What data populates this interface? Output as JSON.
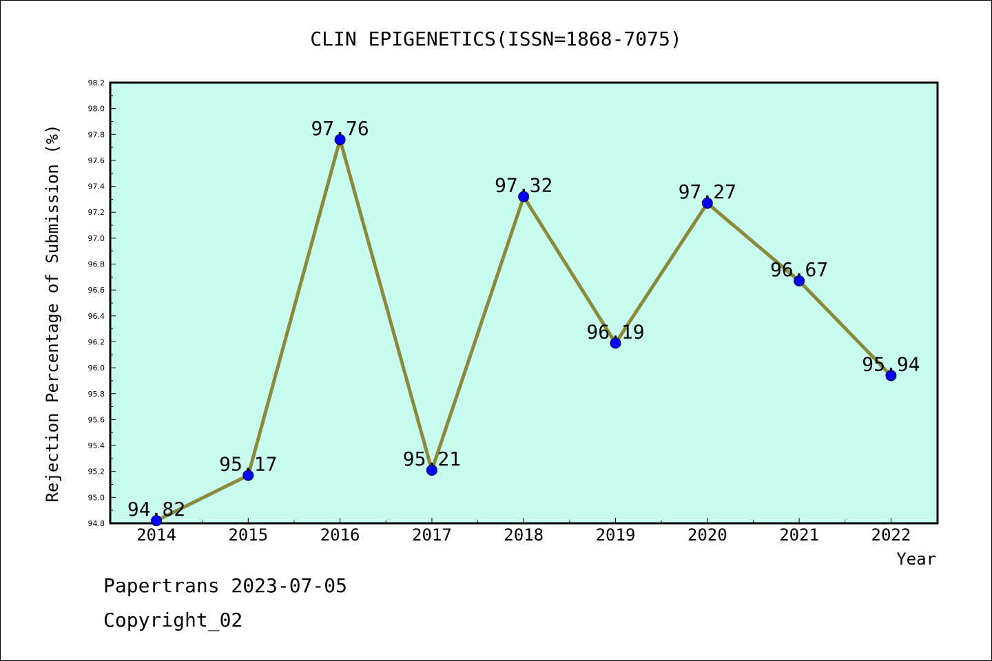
{
  "chart_data": {
    "type": "line",
    "title": "CLIN EPIGENETICS(ISSN=1868-7075)",
    "xlabel": "Year",
    "ylabel": "Rejection Percentage of Submission (%)",
    "categories": [
      "2014",
      "2015",
      "2016",
      "2017",
      "2018",
      "2019",
      "2020",
      "2021",
      "2022"
    ],
    "series": [
      {
        "values": [
          94.82,
          95.17,
          97.76,
          95.21,
          97.32,
          96.19,
          97.27,
          96.67,
          95.94
        ],
        "labels": [
          "94.82",
          "95.17",
          "97.76",
          "95.21",
          "97.32",
          "96.19",
          "97.27",
          "96.67",
          "95.94"
        ]
      }
    ],
    "ylim": [
      94.8,
      98.2
    ],
    "yticks": [
      "94.8",
      "95.0",
      "95.2",
      "95.4",
      "95.6",
      "95.8",
      "96.0",
      "96.2",
      "96.4",
      "96.6",
      "96.8",
      "97.0",
      "97.2",
      "97.4",
      "97.6",
      "97.8",
      "98.0",
      "98.2"
    ],
    "grid": false,
    "legend": "none",
    "colors": {
      "plot_background": "#c8fcee",
      "line": "#8b8a3a",
      "marker": "#0000ff"
    }
  },
  "footer": {
    "line1": "Papertrans 2023-07-05",
    "line2": "Copyright_02"
  }
}
